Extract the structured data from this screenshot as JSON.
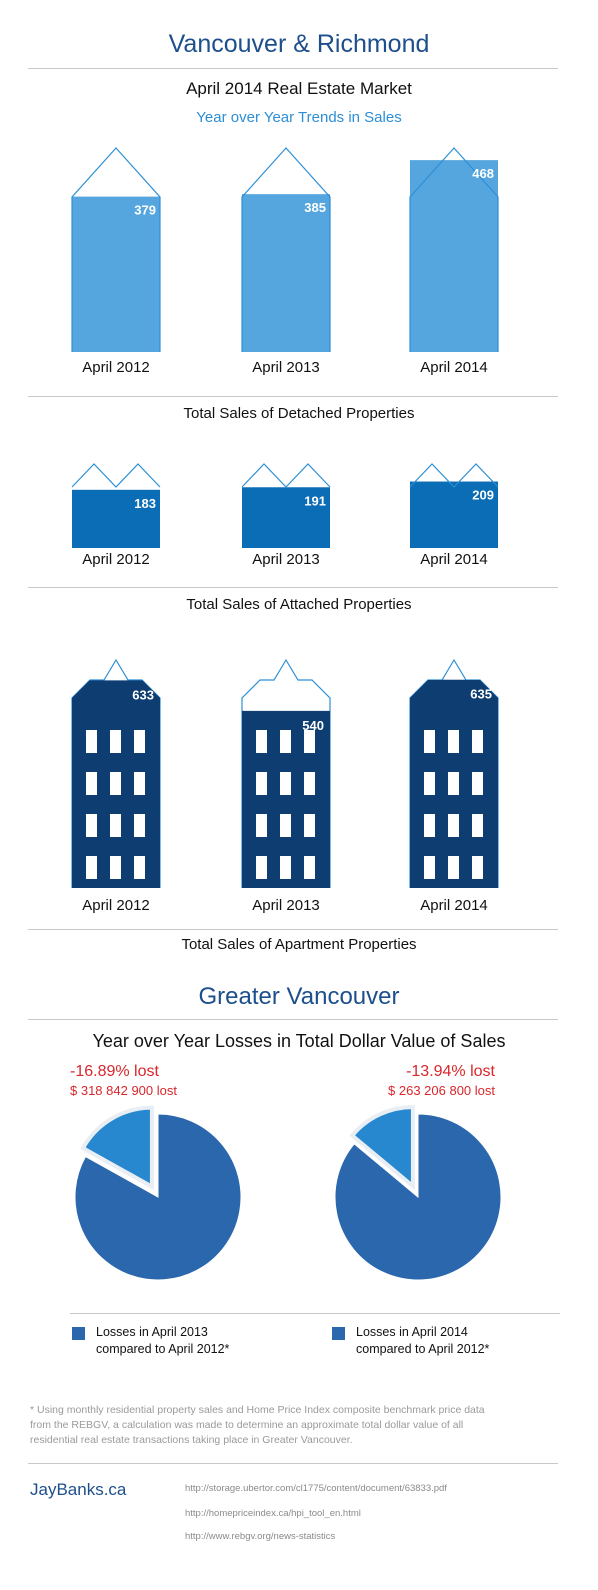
{
  "header": {
    "title": "Vancouver & Richmond",
    "subtitle": "April 2014 Real Estate Market",
    "sub_subtitle": "Year over Year Trends in Sales"
  },
  "colors": {
    "detached": "#55a6df",
    "attached": "#0b6db5",
    "apartment": "#0e3d72",
    "outline": "#2c8fd6",
    "pie_main": "#2a67ad",
    "pie_slice": "#2787cf",
    "loss_red": "#d9262b"
  },
  "chart_data": [
    {
      "type": "bar",
      "title": "Total Sales of Detached Properties",
      "categories": [
        "April 2012",
        "April 2013",
        "April 2014"
      ],
      "values": [
        379,
        385,
        468
      ],
      "ylim": [
        0,
        600
      ]
    },
    {
      "type": "bar",
      "title": "Total Sales of Attached Properties",
      "categories": [
        "April 2012",
        "April 2013",
        "April 2014"
      ],
      "values": [
        183,
        191,
        209
      ],
      "ylim": [
        0,
        260
      ]
    },
    {
      "type": "bar",
      "title": "Total Sales of Apartment Properties",
      "categories": [
        "April 2012",
        "April 2013",
        "April 2014"
      ],
      "values": [
        633,
        540,
        635
      ],
      "ylim": [
        0,
        700
      ]
    },
    {
      "type": "pie",
      "title": "Year over Year Losses in Total Dollar Value of Sales",
      "pies": [
        {
          "percent_label": "-16.89% lost",
          "amount_label": "$ 318 842 900 lost",
          "loss_fraction": 0.1689,
          "legend": "Losses in April 2013 compared to April 2012*",
          "legend_line1": "Losses in April 2013",
          "legend_line2": "compared to April 2012*"
        },
        {
          "percent_label": "-13.94% lost",
          "amount_label": "$ 263 206 800 lost",
          "loss_fraction": 0.1394,
          "legend": "Losses in April 2014 compared to April 2012*",
          "legend_line1": "Losses in April 2014",
          "legend_line2": "compared to April 2012*"
        }
      ]
    }
  ],
  "greater": {
    "title": "Greater Vancouver",
    "subtitle": "Year over Year Losses in Total Dollar Value of Sales"
  },
  "footnote": "* Using monthly residential property sales and Home Price Index composite benchmark price data from the REBGV, a calculation was made to determine an approximate total dollar value of all residential real estate transactions taking place in Greater Vancouver.",
  "footer": {
    "brand": "JayBanks.ca",
    "sources": [
      "http://storage.ubertor.com/cl1775/content/document/63833.pdf",
      "http://homepriceindex.ca/hpi_tool_en.html",
      "http://www.rebgv.org/news-statistics"
    ]
  }
}
